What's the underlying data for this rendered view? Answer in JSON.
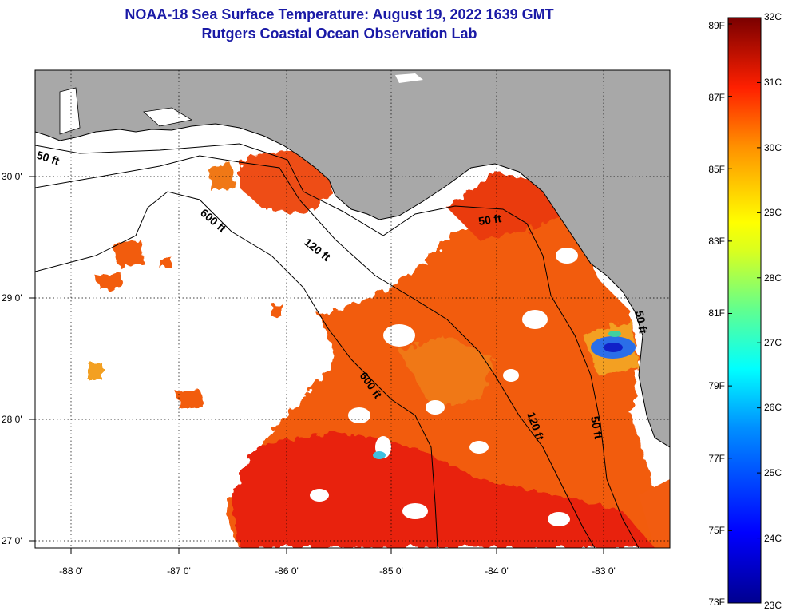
{
  "title_line1": "NOAA-18 Sea Surface Temperature:  August 19, 2022 1639 GMT",
  "title_line2": "Rutgers Coastal Ocean Observation Lab",
  "axes": {
    "lon_labels": [
      "-88 0'",
      "-87 0'",
      "-86 0'",
      "-85 0'",
      "-84 0'",
      "-83 0'"
    ],
    "lat_labels": [
      "30 0'",
      "29 0'",
      "28 0'",
      "27 0'"
    ],
    "lon_range": [
      -88.35,
      -82.4
    ],
    "lat_range": [
      26.98,
      30.85
    ]
  },
  "contours": {
    "labels": [
      "50 ft",
      "600 ft",
      "120 ft",
      "50 ft",
      "600 ft",
      "120 ft",
      "50 ft",
      "50 ft"
    ]
  },
  "colorbar": {
    "fahrenheit": [
      "89F",
      "87F",
      "85F",
      "83F",
      "81F",
      "79F",
      "77F",
      "75F",
      "73F"
    ],
    "celsius": [
      "32C",
      "31C",
      "30C",
      "29C",
      "28C",
      "27C",
      "26C",
      "25C",
      "24C",
      "23C"
    ],
    "range_c": [
      23,
      32
    ]
  },
  "colors": {
    "land": "#a8a8a8",
    "ocean_nodata": "#ffffff",
    "title": "#1a1aa6",
    "warm_sst": "#f25c10",
    "hot_sst": "#e8200e"
  }
}
